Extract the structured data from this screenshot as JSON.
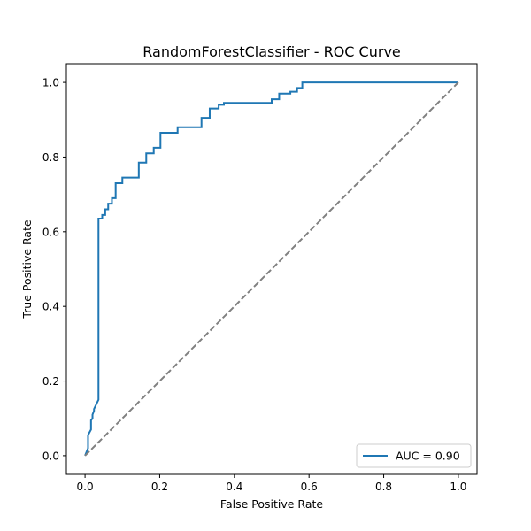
{
  "chart_data": {
    "type": "line",
    "title": "RandomForestClassifier - ROC Curve",
    "xlabel": "False Positive Rate",
    "ylabel": "True Positive Rate",
    "xlim": [
      -0.05,
      1.05
    ],
    "ylim": [
      -0.05,
      1.05
    ],
    "xticks": [
      "0.0",
      "0.2",
      "0.4",
      "0.6",
      "0.8",
      "1.0"
    ],
    "yticks": [
      "0.0",
      "0.2",
      "0.4",
      "0.6",
      "0.8",
      "1.0"
    ],
    "grid": false,
    "legend_position": "lower-right",
    "series": [
      {
        "name": "AUC = 0.90",
        "color": "#1f77b4",
        "style": "solid",
        "x": [
          0.0,
          0.008,
          0.008,
          0.016,
          0.016,
          0.02,
          0.02,
          0.024,
          0.024,
          0.036,
          0.036,
          0.046,
          0.046,
          0.054,
          0.054,
          0.062,
          0.062,
          0.072,
          0.072,
          0.082,
          0.082,
          0.1,
          0.1,
          0.144,
          0.144,
          0.164,
          0.164,
          0.184,
          0.184,
          0.202,
          0.202,
          0.248,
          0.248,
          0.312,
          0.312,
          0.334,
          0.334,
          0.358,
          0.358,
          0.372,
          0.372,
          0.5,
          0.5,
          0.52,
          0.52,
          0.55,
          0.55,
          0.568,
          0.568,
          0.582,
          0.582,
          1.0
        ],
        "y": [
          0.0,
          0.02,
          0.055,
          0.07,
          0.095,
          0.1,
          0.11,
          0.12,
          0.125,
          0.15,
          0.635,
          0.635,
          0.645,
          0.645,
          0.66,
          0.66,
          0.675,
          0.675,
          0.69,
          0.69,
          0.73,
          0.73,
          0.745,
          0.745,
          0.785,
          0.785,
          0.81,
          0.81,
          0.825,
          0.825,
          0.865,
          0.865,
          0.88,
          0.88,
          0.905,
          0.905,
          0.93,
          0.93,
          0.94,
          0.94,
          0.945,
          0.945,
          0.955,
          0.955,
          0.97,
          0.97,
          0.975,
          0.975,
          0.985,
          0.985,
          1.0,
          1.0
        ]
      },
      {
        "name": "",
        "color": "#808080",
        "style": "dashed",
        "x": [
          0.0,
          1.0
        ],
        "y": [
          0.0,
          1.0
        ]
      }
    ]
  }
}
